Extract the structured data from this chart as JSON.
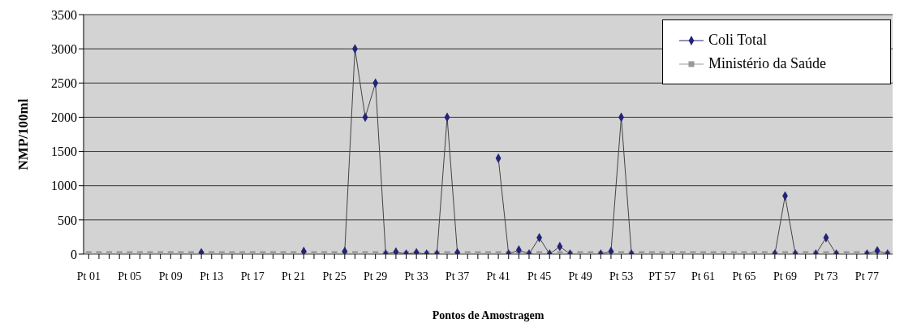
{
  "chart_data": {
    "type": "line",
    "xlabel": "Pontos de Amostragem",
    "ylabel": "NMP/100ml",
    "categories": [
      "Pt 01",
      null,
      null,
      null,
      "Pt 05",
      null,
      null,
      null,
      "Pt 09",
      null,
      null,
      null,
      "Pt 13",
      null,
      null,
      null,
      "Pt 17",
      null,
      null,
      null,
      "Pt 21",
      null,
      null,
      null,
      "Pt 25",
      null,
      null,
      null,
      "Pt 29",
      null,
      null,
      null,
      "Pt 33",
      null,
      null,
      null,
      "Pt 37",
      null,
      null,
      null,
      "Pt 41",
      null,
      null,
      null,
      "Pt 45",
      null,
      null,
      null,
      "Pt 49",
      null,
      null,
      null,
      "Pt 53",
      null,
      null,
      null,
      "PT 57",
      null,
      null,
      null,
      "Pt 61",
      null,
      null,
      null,
      "Pt 65",
      null,
      null,
      null,
      "Pt 69",
      null,
      null,
      null,
      "Pt 73",
      null,
      null,
      null,
      "Pt 77",
      null,
      null
    ],
    "series": [
      {
        "name": "Coli Total",
        "color": "#23237a",
        "marker": "diamond",
        "values": [
          null,
          null,
          null,
          null,
          null,
          null,
          null,
          null,
          null,
          null,
          null,
          20,
          null,
          null,
          null,
          null,
          null,
          null,
          null,
          null,
          null,
          40,
          null,
          null,
          null,
          40,
          3000,
          2000,
          2500,
          0,
          30,
          0,
          20,
          0,
          0,
          2000,
          20,
          null,
          null,
          null,
          1400,
          0,
          60,
          0,
          240,
          0,
          110,
          0,
          null,
          null,
          0,
          40,
          2000,
          0,
          null,
          null,
          null,
          null,
          null,
          null,
          null,
          null,
          null,
          null,
          null,
          null,
          null,
          0,
          850,
          0,
          null,
          0,
          240,
          0,
          null,
          null,
          0,
          50,
          0
        ]
      },
      {
        "name": "Ministério da Saúde",
        "color": "#999999",
        "marker": "square",
        "values": [
          0,
          0,
          0,
          0,
          0,
          0,
          0,
          0,
          0,
          0,
          0,
          0,
          0,
          0,
          0,
          0,
          0,
          0,
          0,
          0,
          0,
          0,
          0,
          0,
          0,
          0,
          0,
          0,
          0,
          0,
          0,
          0,
          0,
          0,
          0,
          0,
          0,
          0,
          0,
          0,
          0,
          0,
          0,
          0,
          0,
          0,
          0,
          0,
          0,
          0,
          0,
          0,
          0,
          0,
          0,
          0,
          0,
          0,
          0,
          0,
          0,
          0,
          0,
          0,
          0,
          0,
          0,
          0,
          0,
          0,
          0,
          0,
          0,
          0,
          0,
          0,
          0,
          0,
          0
        ]
      }
    ],
    "ylim": [
      0,
      3500
    ],
    "yticks": [
      0,
      500,
      1000,
      1500,
      2000,
      2500,
      3000,
      3500
    ],
    "grid": "y",
    "legend": "top right",
    "line_style": "solid"
  }
}
